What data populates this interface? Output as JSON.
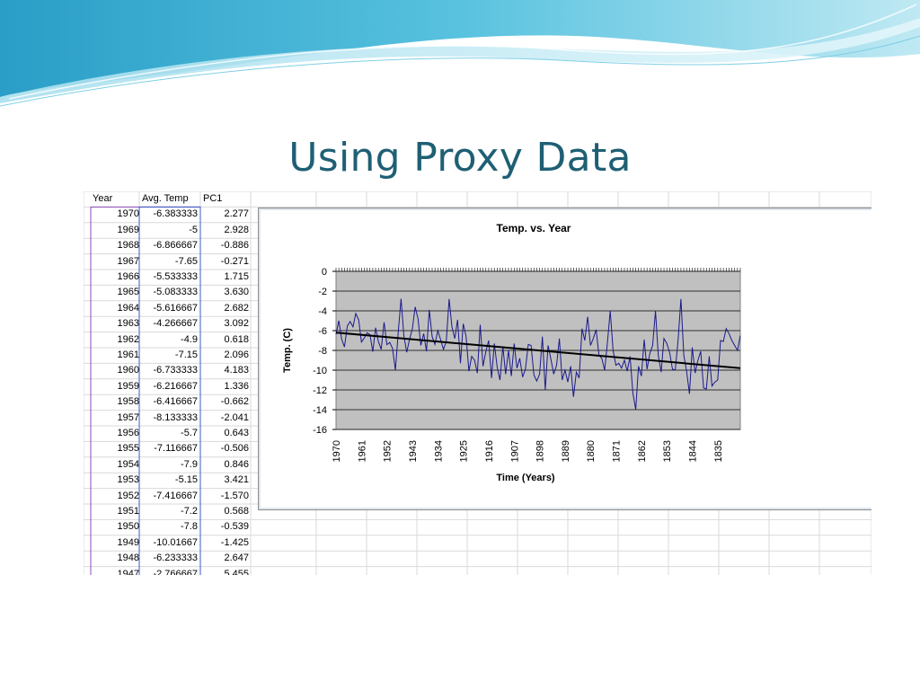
{
  "slide": {
    "title": "Using Proxy Data"
  },
  "sheet": {
    "columns": [
      "Year",
      "Avg. Temp",
      "PC1"
    ],
    "rows": [
      [
        "1970",
        "-6.383333",
        "2.277"
      ],
      [
        "1969",
        "-5",
        "2.928"
      ],
      [
        "1968",
        "-6.866667",
        "-0.886"
      ],
      [
        "1967",
        "-7.65",
        "-0.271"
      ],
      [
        "1966",
        "-5.533333",
        "1.715"
      ],
      [
        "1965",
        "-5.083333",
        "3.630"
      ],
      [
        "1964",
        "-5.616667",
        "2.682"
      ],
      [
        "1963",
        "-4.266667",
        "3.092"
      ],
      [
        "1962",
        "-4.9",
        "0.618"
      ],
      [
        "1961",
        "-7.15",
        "2.096"
      ],
      [
        "1960",
        "-6.733333",
        "4.183"
      ],
      [
        "1959",
        "-6.216667",
        "1.336"
      ],
      [
        "1958",
        "-6.416667",
        "-0.662"
      ],
      [
        "1957",
        "-8.133333",
        "-2.041"
      ],
      [
        "1956",
        "-5.7",
        "0.643"
      ],
      [
        "1955",
        "-7.116667",
        "-0.506"
      ],
      [
        "1954",
        "-7.9",
        "0.846"
      ],
      [
        "1953",
        "-5.15",
        "3.421"
      ],
      [
        "1952",
        "-7.416667",
        "-1.570"
      ],
      [
        "1951",
        "-7.2",
        "0.568"
      ],
      [
        "1950",
        "-7.8",
        "-0.539"
      ],
      [
        "1949",
        "-10.01667",
        "-1.425"
      ],
      [
        "1948",
        "-6.233333",
        "2.647"
      ],
      [
        "1947",
        "-2.766667",
        "5.455"
      ]
    ]
  },
  "chart_data": {
    "type": "line",
    "title": "Temp. vs. Year",
    "xlabel": "Time (Years)",
    "ylabel": "Temp. (C)",
    "ylim": [
      -16,
      0
    ],
    "yticks": [
      0,
      -2,
      -4,
      -6,
      -8,
      -10,
      -12,
      -14,
      -16
    ],
    "x_range": [
      1970,
      1827
    ],
    "xticks": [
      "1970",
      "1961",
      "1952",
      "1943",
      "1934",
      "1925",
      "1916",
      "1907",
      "1898",
      "1889",
      "1880",
      "1871",
      "1862",
      "1853",
      "1844",
      "1835"
    ],
    "grid": true,
    "legend": "none",
    "series": [
      {
        "color": "#1a1a8c",
        "x": [
          1970,
          1969,
          1968,
          1967,
          1966,
          1965,
          1964,
          1963,
          1962,
          1961,
          1960,
          1959,
          1958,
          1957,
          1956,
          1955,
          1954,
          1953,
          1952,
          1951,
          1950,
          1949,
          1948,
          1947,
          1946,
          1945,
          1944,
          1943,
          1942,
          1941,
          1940,
          1939,
          1938,
          1937,
          1936,
          1935,
          1934,
          1933,
          1932,
          1931,
          1930,
          1929,
          1928,
          1927,
          1926,
          1925,
          1924,
          1923,
          1922,
          1921,
          1920,
          1919,
          1918,
          1917,
          1916,
          1915,
          1914,
          1913,
          1912,
          1911,
          1910,
          1909,
          1908,
          1907,
          1906,
          1905,
          1904,
          1903,
          1902,
          1901,
          1900,
          1899,
          1898,
          1897,
          1896,
          1895,
          1894,
          1893,
          1892,
          1891,
          1890,
          1889,
          1888,
          1887,
          1886,
          1885,
          1884,
          1883,
          1882,
          1881,
          1880,
          1879,
          1878,
          1877,
          1876,
          1875,
          1874,
          1873,
          1872,
          1871,
          1870,
          1869,
          1868,
          1867,
          1866,
          1865,
          1864,
          1863,
          1862,
          1861,
          1860,
          1859,
          1858,
          1857,
          1856,
          1855,
          1854,
          1853,
          1852,
          1851,
          1850,
          1849,
          1848,
          1847,
          1846,
          1845,
          1844,
          1843,
          1842,
          1841,
          1840,
          1839,
          1838,
          1837,
          1836,
          1835,
          1834,
          1833,
          1832,
          1831,
          1830,
          1829,
          1828,
          1827
        ],
        "values": [
          -6.38,
          -5,
          -6.87,
          -7.65,
          -5.53,
          -5.08,
          -5.62,
          -4.27,
          -4.9,
          -7.15,
          -6.73,
          -6.22,
          -6.42,
          -8.13,
          -5.7,
          -7.12,
          -7.9,
          -5.15,
          -7.42,
          -7.2,
          -7.8,
          -10.02,
          -6.23,
          -2.77,
          -6.5,
          -8.2,
          -6.9,
          -5.8,
          -3.6,
          -4.8,
          -7.5,
          -6.3,
          -8.1,
          -3.9,
          -6.6,
          -7.4,
          -6.0,
          -6.9,
          -7.9,
          -7.1,
          -2.8,
          -5.6,
          -6.8,
          -4.9,
          -9.3,
          -5.3,
          -6.6,
          -10.1,
          -8.6,
          -9.0,
          -10.3,
          -5.4,
          -9.6,
          -8.1,
          -7.0,
          -10.8,
          -7.3,
          -9.7,
          -11.0,
          -7.6,
          -10.4,
          -8.0,
          -10.6,
          -7.3,
          -9.8,
          -8.8,
          -10.7,
          -9.9,
          -7.4,
          -7.5,
          -10.5,
          -11.1,
          -10.4,
          -6.6,
          -12.0,
          -7.5,
          -8.9,
          -10.4,
          -9.5,
          -6.8,
          -11.0,
          -10.0,
          -11.2,
          -9.6,
          -12.7,
          -10.2,
          -10.8,
          -5.8,
          -7.0,
          -4.6,
          -7.5,
          -6.8,
          -5.9,
          -8.5,
          -8.8,
          -10.0,
          -7.2,
          -4.0,
          -8.0,
          -9.5,
          -9.3,
          -9.8,
          -9.0,
          -10.1,
          -8.6,
          -12.3,
          -14.0,
          -9.6,
          -10.6,
          -6.9,
          -9.9,
          -8.3,
          -7.5,
          -4.0,
          -8.5,
          -10.2,
          -6.8,
          -7.3,
          -8.2,
          -9.9,
          -10.0,
          -6.9,
          -2.8,
          -8.5,
          -10.1,
          -12.4,
          -7.7,
          -10.3,
          -9.0,
          -8.1,
          -11.8,
          -11.9,
          -8.6,
          -11.6,
          -11.2,
          -11.0,
          -7.0,
          -7.1,
          -5.8,
          -6.3,
          -7.0,
          -7.5,
          -8.0,
          -6.5
        ]
      }
    ],
    "trendline": {
      "color": "#000000",
      "from": [
        1970,
        -6.2
      ],
      "to": [
        1827,
        -9.8
      ]
    }
  }
}
